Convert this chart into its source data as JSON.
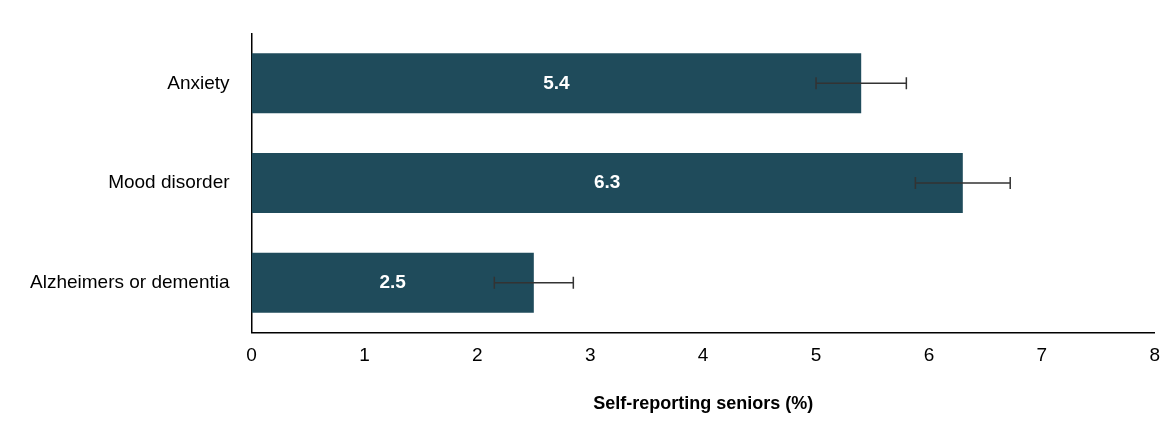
{
  "chart_data": {
    "type": "bar",
    "orientation": "horizontal",
    "xlabel": "Self-reporting seniors (%)",
    "categories": [
      "Anxiety",
      "Mood disorder",
      "Alzheimers or dementia"
    ],
    "values": [
      5.4,
      6.3,
      2.5
    ],
    "errors": [
      0.4,
      0.42,
      0.35
    ],
    "color": "#1f4b5b",
    "xlim": [
      0,
      8
    ],
    "xticks": [
      0,
      1,
      2,
      3,
      4,
      5,
      6,
      7,
      8
    ],
    "grid": false,
    "data_labels": true
  }
}
